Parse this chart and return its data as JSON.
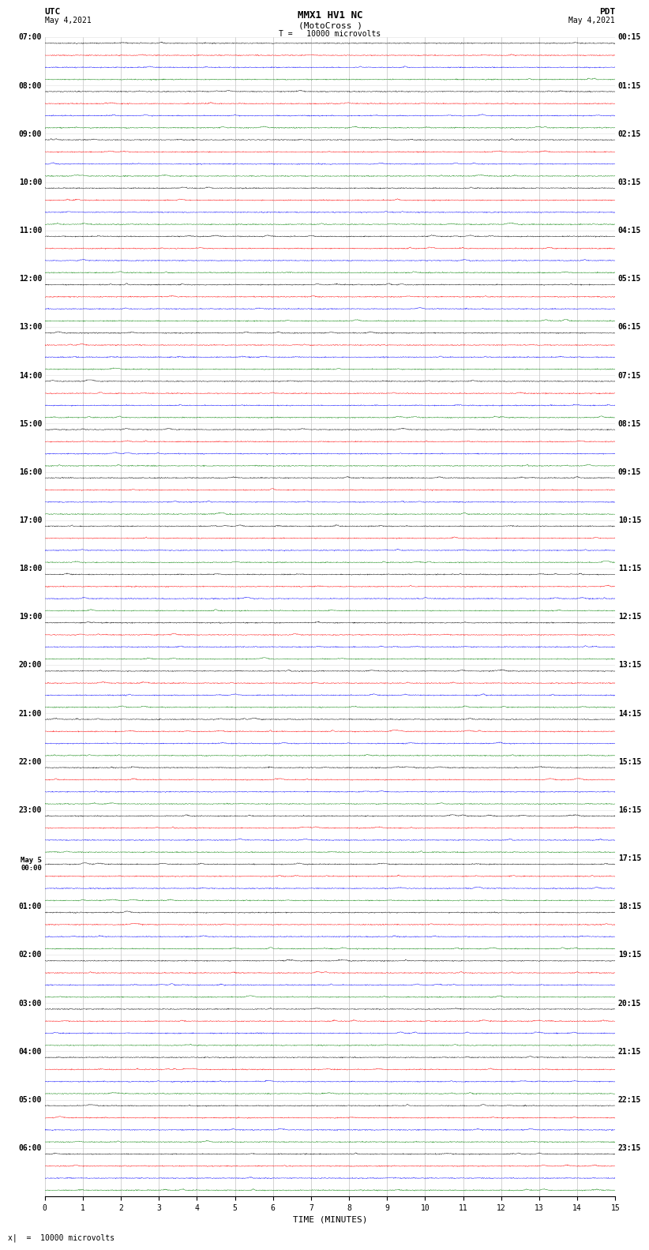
{
  "title_line1": "MMX1 HV1 NC",
  "title_line2": "(MotoCross )",
  "label_left_top": "UTC",
  "label_left_date": "May 4,2021",
  "label_right_top": "PDT",
  "label_right_date": "May 4,2021",
  "scale_label": "T =   10000 microvolts",
  "footer_scale": "x|  =  10000 microvolts",
  "xlabel": "TIME (MINUTES)",
  "utc_times": [
    "07:00",
    "08:00",
    "09:00",
    "10:00",
    "11:00",
    "12:00",
    "13:00",
    "14:00",
    "15:00",
    "16:00",
    "17:00",
    "18:00",
    "19:00",
    "20:00",
    "21:00",
    "22:00",
    "23:00",
    "May 5\n00:00",
    "01:00",
    "02:00",
    "03:00",
    "04:00",
    "05:00",
    "06:00"
  ],
  "pdt_times": [
    "00:15",
    "01:15",
    "02:15",
    "03:15",
    "04:15",
    "05:15",
    "06:15",
    "07:15",
    "08:15",
    "09:15",
    "10:15",
    "11:15",
    "12:15",
    "13:15",
    "14:15",
    "15:15",
    "16:15",
    "17:15",
    "18:15",
    "19:15",
    "20:15",
    "21:15",
    "22:15",
    "23:15"
  ],
  "n_hours": 24,
  "n_channels": 4,
  "channel_colors": [
    "black",
    "red",
    "blue",
    "green"
  ],
  "bg_color": "white",
  "trace_amplitude": 0.04,
  "fig_width": 8.5,
  "fig_height": 16.13,
  "xmin": 0,
  "xmax": 15,
  "xticks": [
    0,
    1,
    2,
    3,
    4,
    5,
    6,
    7,
    8,
    9,
    10,
    11,
    12,
    13,
    14,
    15
  ]
}
